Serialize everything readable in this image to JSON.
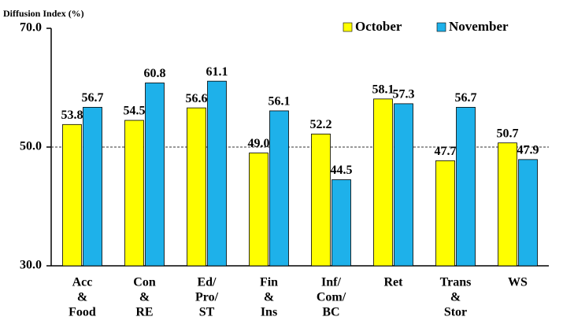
{
  "chart_data": {
    "type": "bar",
    "y_axis_label": "Diffusion Index (%)",
    "categories": [
      [
        "Acc",
        "&",
        "Food"
      ],
      [
        "Con",
        "&",
        "RE"
      ],
      [
        "Ed/",
        "Pro/",
        "ST"
      ],
      [
        "Fin",
        "&",
        "Ins"
      ],
      [
        "Inf/",
        "Com/",
        "BC"
      ],
      [
        "Ret"
      ],
      [
        "Trans",
        "&",
        "Stor"
      ],
      [
        "WS"
      ]
    ],
    "series": [
      {
        "name": "October",
        "color": "#ffff00",
        "values": [
          53.8,
          54.5,
          56.6,
          49.0,
          52.2,
          58.1,
          47.7,
          50.7
        ],
        "value_labels": [
          "53.8",
          "54.5",
          "56.6",
          "49.0",
          "52.2",
          "58.1",
          "47.7",
          "50.7"
        ]
      },
      {
        "name": "November",
        "color": "#1eb1ea",
        "values": [
          56.7,
          60.8,
          61.1,
          56.1,
          44.5,
          57.3,
          56.7,
          47.9
        ],
        "value_labels": [
          "56.7",
          "60.8",
          "61.1",
          "56.1",
          "44.5",
          "57.3",
          "56.7",
          "47.9"
        ]
      }
    ],
    "ylim": [
      30,
      70
    ],
    "yticks": [
      {
        "value": 30,
        "label": "30.0"
      },
      {
        "value": 50,
        "label": "50.0"
      },
      {
        "value": 70,
        "label": "70.0"
      }
    ],
    "reference_line": 50
  }
}
